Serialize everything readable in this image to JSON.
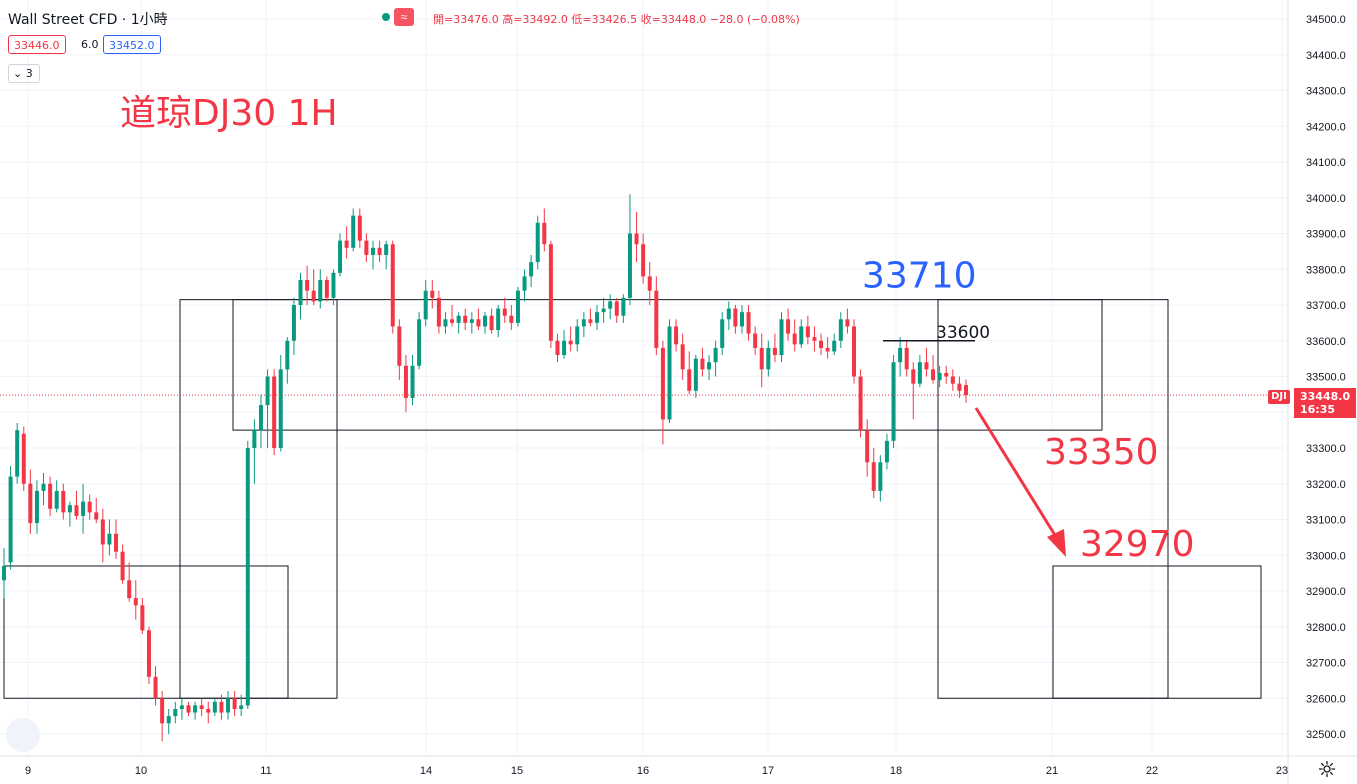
{
  "header": {
    "symbol_title": "Wall Street CFD · 1小時",
    "ohlc_line": "開=33476.0  高=33492.0  低=33426.5  收=33448.0  −28.0 (−0.08%)",
    "bid": "33446.0",
    "spread": "6.0",
    "ask": "33452.0",
    "indicator_count": "3"
  },
  "price_scale": {
    "symbol_tag": "DJI",
    "last_price": "33448.0",
    "countdown": "16:35"
  },
  "colors": {
    "up": "#089981",
    "down": "#f23645",
    "blue_text": "#2962ff",
    "red_text": "#f23645"
  },
  "icons": [
    "status-dot-icon",
    "wave-icon",
    "settings-gear-icon"
  ],
  "chart_data": {
    "type": "candlestick",
    "title": "道琼DJ30 1H",
    "ylim": [
      32450,
      34550
    ],
    "y_ticks": [
      32500,
      32600,
      32700,
      32800,
      32900,
      33000,
      33100,
      33200,
      33300,
      33400,
      33500,
      33600,
      33700,
      33800,
      33900,
      34000,
      34100,
      34200,
      34300,
      34400,
      34500
    ],
    "y_tick_labels": [
      "32500.0",
      "32600.0",
      "32700.0",
      "32800.0",
      "32900.0",
      "33000.0",
      "33100.0",
      "33200.0",
      "33300.0",
      "33400.0",
      "33500.0",
      "33600.0",
      "33700.0",
      "33800.0",
      "33900.0",
      "34000.0",
      "34100.0",
      "34200.0",
      "34300.0",
      "34400.0",
      "34500.0"
    ],
    "x_tick_labels": [
      "9",
      "10",
      "11",
      "14",
      "15",
      "16",
      "17",
      "18",
      "21",
      "22",
      "23"
    ],
    "last_price": 33448.0,
    "annotations": [
      {
        "text": "33710",
        "color": "#2962ff",
        "price": 33710
      },
      {
        "text": "33600",
        "color": "#131722",
        "price": 33600
      },
      {
        "text": "33350",
        "color": "#f23645",
        "price": 33350
      },
      {
        "text": "32970",
        "color": "#f23645",
        "price": 32970
      }
    ],
    "zones": [
      {
        "name": "zone-1",
        "top": 32970,
        "bottom": 32600
      },
      {
        "name": "zone-2",
        "top": 33715,
        "bottom": 32600
      },
      {
        "name": "zone-3",
        "top": 33715,
        "bottom": 33350
      },
      {
        "name": "zone-4",
        "top": 33715,
        "bottom": 32600
      },
      {
        "name": "zone-5",
        "top": 32970,
        "bottom": 32600
      }
    ],
    "candles": [
      {
        "o": 32930,
        "h": 33020,
        "l": 32880,
        "c": 32970
      },
      {
        "o": 32980,
        "h": 33250,
        "l": 32960,
        "c": 33220
      },
      {
        "o": 33220,
        "h": 33370,
        "l": 33200,
        "c": 33350
      },
      {
        "o": 33340,
        "h": 33360,
        "l": 33180,
        "c": 33200
      },
      {
        "o": 33200,
        "h": 33240,
        "l": 33060,
        "c": 33090
      },
      {
        "o": 33090,
        "h": 33210,
        "l": 33060,
        "c": 33180
      },
      {
        "o": 33180,
        "h": 33230,
        "l": 33140,
        "c": 33200
      },
      {
        "o": 33200,
        "h": 33220,
        "l": 33110,
        "c": 33130
      },
      {
        "o": 33130,
        "h": 33210,
        "l": 33120,
        "c": 33180
      },
      {
        "o": 33180,
        "h": 33200,
        "l": 33100,
        "c": 33120
      },
      {
        "o": 33120,
        "h": 33150,
        "l": 33080,
        "c": 33140
      },
      {
        "o": 33140,
        "h": 33180,
        "l": 33100,
        "c": 33110
      },
      {
        "o": 33110,
        "h": 33200,
        "l": 33060,
        "c": 33150
      },
      {
        "o": 33150,
        "h": 33170,
        "l": 33100,
        "c": 33120
      },
      {
        "o": 33120,
        "h": 33160,
        "l": 33090,
        "c": 33100
      },
      {
        "o": 33100,
        "h": 33130,
        "l": 32980,
        "c": 33030
      },
      {
        "o": 33030,
        "h": 33100,
        "l": 33000,
        "c": 33060
      },
      {
        "o": 33060,
        "h": 33100,
        "l": 32990,
        "c": 33010
      },
      {
        "o": 33010,
        "h": 33030,
        "l": 32920,
        "c": 32930
      },
      {
        "o": 32930,
        "h": 32980,
        "l": 32870,
        "c": 32880
      },
      {
        "o": 32880,
        "h": 32930,
        "l": 32820,
        "c": 32860
      },
      {
        "o": 32860,
        "h": 32880,
        "l": 32780,
        "c": 32790
      },
      {
        "o": 32790,
        "h": 32800,
        "l": 32640,
        "c": 32660
      },
      {
        "o": 32660,
        "h": 32690,
        "l": 32580,
        "c": 32600
      },
      {
        "o": 32600,
        "h": 32620,
        "l": 32480,
        "c": 32530
      },
      {
        "o": 32530,
        "h": 32570,
        "l": 32500,
        "c": 32550
      },
      {
        "o": 32550,
        "h": 32590,
        "l": 32530,
        "c": 32570
      },
      {
        "o": 32570,
        "h": 32600,
        "l": 32540,
        "c": 32580
      },
      {
        "o": 32580,
        "h": 32590,
        "l": 32550,
        "c": 32560
      },
      {
        "o": 32560,
        "h": 32590,
        "l": 32540,
        "c": 32580
      },
      {
        "o": 32580,
        "h": 32600,
        "l": 32550,
        "c": 32570
      },
      {
        "o": 32570,
        "h": 32590,
        "l": 32530,
        "c": 32560
      },
      {
        "o": 32560,
        "h": 32600,
        "l": 32550,
        "c": 32590
      },
      {
        "o": 32590,
        "h": 32610,
        "l": 32540,
        "c": 32560
      },
      {
        "o": 32560,
        "h": 32620,
        "l": 32540,
        "c": 32600
      },
      {
        "o": 32600,
        "h": 32620,
        "l": 32550,
        "c": 32570
      },
      {
        "o": 32570,
        "h": 32610,
        "l": 32550,
        "c": 32580
      },
      {
        "o": 32580,
        "h": 33320,
        "l": 32570,
        "c": 33300
      },
      {
        "o": 33300,
        "h": 33380,
        "l": 33200,
        "c": 33350
      },
      {
        "o": 33350,
        "h": 33450,
        "l": 33300,
        "c": 33420
      },
      {
        "o": 33420,
        "h": 33520,
        "l": 33300,
        "c": 33500
      },
      {
        "o": 33500,
        "h": 33520,
        "l": 33280,
        "c": 33300
      },
      {
        "o": 33300,
        "h": 33560,
        "l": 33290,
        "c": 33520
      },
      {
        "o": 33520,
        "h": 33610,
        "l": 33480,
        "c": 33600
      },
      {
        "o": 33600,
        "h": 33720,
        "l": 33560,
        "c": 33700
      },
      {
        "o": 33700,
        "h": 33790,
        "l": 33660,
        "c": 33770
      },
      {
        "o": 33770,
        "h": 33810,
        "l": 33700,
        "c": 33740
      },
      {
        "o": 33740,
        "h": 33800,
        "l": 33700,
        "c": 33710
      },
      {
        "o": 33710,
        "h": 33800,
        "l": 33690,
        "c": 33770
      },
      {
        "o": 33770,
        "h": 33780,
        "l": 33710,
        "c": 33720
      },
      {
        "o": 33720,
        "h": 33800,
        "l": 33700,
        "c": 33790
      },
      {
        "o": 33790,
        "h": 33900,
        "l": 33780,
        "c": 33880
      },
      {
        "o": 33880,
        "h": 33920,
        "l": 33830,
        "c": 33860
      },
      {
        "o": 33860,
        "h": 33970,
        "l": 33850,
        "c": 33950
      },
      {
        "o": 33950,
        "h": 33970,
        "l": 33860,
        "c": 33880
      },
      {
        "o": 33880,
        "h": 33900,
        "l": 33820,
        "c": 33840
      },
      {
        "o": 33840,
        "h": 33880,
        "l": 33800,
        "c": 33860
      },
      {
        "o": 33860,
        "h": 33880,
        "l": 33820,
        "c": 33840
      },
      {
        "o": 33840,
        "h": 33880,
        "l": 33800,
        "c": 33870
      },
      {
        "o": 33870,
        "h": 33880,
        "l": 33620,
        "c": 33640
      },
      {
        "o": 33640,
        "h": 33660,
        "l": 33490,
        "c": 33530
      },
      {
        "o": 33530,
        "h": 33560,
        "l": 33400,
        "c": 33440
      },
      {
        "o": 33440,
        "h": 33560,
        "l": 33420,
        "c": 33530
      },
      {
        "o": 33530,
        "h": 33680,
        "l": 33520,
        "c": 33660
      },
      {
        "o": 33660,
        "h": 33770,
        "l": 33640,
        "c": 33740
      },
      {
        "o": 33740,
        "h": 33770,
        "l": 33690,
        "c": 33720
      },
      {
        "o": 33720,
        "h": 33740,
        "l": 33620,
        "c": 33640
      },
      {
        "o": 33640,
        "h": 33680,
        "l": 33620,
        "c": 33660
      },
      {
        "o": 33660,
        "h": 33700,
        "l": 33640,
        "c": 33650
      },
      {
        "o": 33650,
        "h": 33680,
        "l": 33620,
        "c": 33670
      },
      {
        "o": 33670,
        "h": 33690,
        "l": 33630,
        "c": 33650
      },
      {
        "o": 33650,
        "h": 33680,
        "l": 33620,
        "c": 33660
      },
      {
        "o": 33660,
        "h": 33690,
        "l": 33630,
        "c": 33640
      },
      {
        "o": 33640,
        "h": 33680,
        "l": 33620,
        "c": 33670
      },
      {
        "o": 33670,
        "h": 33690,
        "l": 33620,
        "c": 33630
      },
      {
        "o": 33630,
        "h": 33700,
        "l": 33610,
        "c": 33690
      },
      {
        "o": 33690,
        "h": 33720,
        "l": 33650,
        "c": 33670
      },
      {
        "o": 33670,
        "h": 33700,
        "l": 33630,
        "c": 33650
      },
      {
        "o": 33650,
        "h": 33750,
        "l": 33640,
        "c": 33740
      },
      {
        "o": 33740,
        "h": 33800,
        "l": 33710,
        "c": 33780
      },
      {
        "o": 33780,
        "h": 33840,
        "l": 33750,
        "c": 33820
      },
      {
        "o": 33820,
        "h": 33950,
        "l": 33800,
        "c": 33930
      },
      {
        "o": 33930,
        "h": 33970,
        "l": 33850,
        "c": 33870
      },
      {
        "o": 33870,
        "h": 33880,
        "l": 33580,
        "c": 33600
      },
      {
        "o": 33600,
        "h": 33620,
        "l": 33540,
        "c": 33560
      },
      {
        "o": 33560,
        "h": 33630,
        "l": 33550,
        "c": 33600
      },
      {
        "o": 33600,
        "h": 33640,
        "l": 33570,
        "c": 33590
      },
      {
        "o": 33590,
        "h": 33660,
        "l": 33570,
        "c": 33640
      },
      {
        "o": 33640,
        "h": 33680,
        "l": 33610,
        "c": 33660
      },
      {
        "o": 33660,
        "h": 33690,
        "l": 33640,
        "c": 33650
      },
      {
        "o": 33650,
        "h": 33700,
        "l": 33630,
        "c": 33680
      },
      {
        "o": 33680,
        "h": 33720,
        "l": 33650,
        "c": 33690
      },
      {
        "o": 33690,
        "h": 33730,
        "l": 33660,
        "c": 33710
      },
      {
        "o": 33710,
        "h": 33720,
        "l": 33650,
        "c": 33670
      },
      {
        "o": 33670,
        "h": 33730,
        "l": 33650,
        "c": 33720
      },
      {
        "o": 33720,
        "h": 34010,
        "l": 33700,
        "c": 33900
      },
      {
        "o": 33900,
        "h": 33960,
        "l": 33820,
        "c": 33870
      },
      {
        "o": 33870,
        "h": 33900,
        "l": 33760,
        "c": 33780
      },
      {
        "o": 33780,
        "h": 33820,
        "l": 33700,
        "c": 33740
      },
      {
        "o": 33740,
        "h": 33780,
        "l": 33560,
        "c": 33580
      },
      {
        "o": 33580,
        "h": 33600,
        "l": 33310,
        "c": 33380
      },
      {
        "o": 33380,
        "h": 33660,
        "l": 33370,
        "c": 33640
      },
      {
        "o": 33640,
        "h": 33660,
        "l": 33570,
        "c": 33590
      },
      {
        "o": 33590,
        "h": 33620,
        "l": 33490,
        "c": 33520
      },
      {
        "o": 33520,
        "h": 33570,
        "l": 33450,
        "c": 33460
      },
      {
        "o": 33460,
        "h": 33560,
        "l": 33440,
        "c": 33550
      },
      {
        "o": 33550,
        "h": 33580,
        "l": 33500,
        "c": 33520
      },
      {
        "o": 33520,
        "h": 33560,
        "l": 33490,
        "c": 33540
      },
      {
        "o": 33540,
        "h": 33600,
        "l": 33500,
        "c": 33580
      },
      {
        "o": 33580,
        "h": 33680,
        "l": 33560,
        "c": 33660
      },
      {
        "o": 33660,
        "h": 33710,
        "l": 33630,
        "c": 33690
      },
      {
        "o": 33690,
        "h": 33700,
        "l": 33620,
        "c": 33640
      },
      {
        "o": 33640,
        "h": 33700,
        "l": 33620,
        "c": 33680
      },
      {
        "o": 33680,
        "h": 33700,
        "l": 33600,
        "c": 33620
      },
      {
        "o": 33620,
        "h": 33640,
        "l": 33560,
        "c": 33580
      },
      {
        "o": 33580,
        "h": 33620,
        "l": 33470,
        "c": 33520
      },
      {
        "o": 33520,
        "h": 33600,
        "l": 33500,
        "c": 33580
      },
      {
        "o": 33580,
        "h": 33620,
        "l": 33540,
        "c": 33560
      },
      {
        "o": 33560,
        "h": 33680,
        "l": 33540,
        "c": 33660
      },
      {
        "o": 33660,
        "h": 33690,
        "l": 33600,
        "c": 33620
      },
      {
        "o": 33620,
        "h": 33660,
        "l": 33570,
        "c": 33590
      },
      {
        "o": 33590,
        "h": 33660,
        "l": 33580,
        "c": 33640
      },
      {
        "o": 33640,
        "h": 33670,
        "l": 33590,
        "c": 33610
      },
      {
        "o": 33610,
        "h": 33640,
        "l": 33570,
        "c": 33600
      },
      {
        "o": 33600,
        "h": 33620,
        "l": 33560,
        "c": 33580
      },
      {
        "o": 33580,
        "h": 33610,
        "l": 33550,
        "c": 33570
      },
      {
        "o": 33570,
        "h": 33620,
        "l": 33560,
        "c": 33600
      },
      {
        "o": 33600,
        "h": 33680,
        "l": 33580,
        "c": 33660
      },
      {
        "o": 33660,
        "h": 33690,
        "l": 33620,
        "c": 33640
      },
      {
        "o": 33640,
        "h": 33660,
        "l": 33480,
        "c": 33500
      },
      {
        "o": 33500,
        "h": 33520,
        "l": 33330,
        "c": 33350
      },
      {
        "o": 33350,
        "h": 33380,
        "l": 33220,
        "c": 33260
      },
      {
        "o": 33260,
        "h": 33300,
        "l": 33160,
        "c": 33180
      },
      {
        "o": 33180,
        "h": 33280,
        "l": 33150,
        "c": 33260
      },
      {
        "o": 33260,
        "h": 33340,
        "l": 33240,
        "c": 33320
      },
      {
        "o": 33320,
        "h": 33560,
        "l": 33300,
        "c": 33540
      },
      {
        "o": 33540,
        "h": 33610,
        "l": 33500,
        "c": 33580
      },
      {
        "o": 33580,
        "h": 33600,
        "l": 33500,
        "c": 33520
      },
      {
        "o": 33520,
        "h": 33540,
        "l": 33380,
        "c": 33480
      },
      {
        "o": 33480,
        "h": 33560,
        "l": 33470,
        "c": 33540
      },
      {
        "o": 33540,
        "h": 33580,
        "l": 33500,
        "c": 33520
      },
      {
        "o": 33520,
        "h": 33560,
        "l": 33480,
        "c": 33490
      },
      {
        "o": 33490,
        "h": 33530,
        "l": 33470,
        "c": 33510
      },
      {
        "o": 33510,
        "h": 33530,
        "l": 33480,
        "c": 33500
      },
      {
        "o": 33500,
        "h": 33520,
        "l": 33460,
        "c": 33480
      },
      {
        "o": 33480,
        "h": 33500,
        "l": 33440,
        "c": 33460
      },
      {
        "o": 33476,
        "h": 33492,
        "l": 33426.5,
        "c": 33448
      }
    ]
  }
}
